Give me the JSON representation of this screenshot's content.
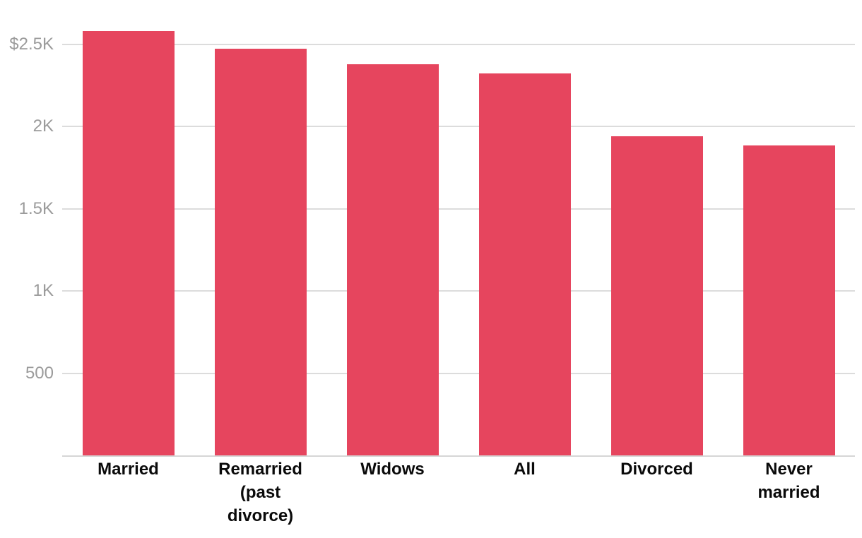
{
  "chart_data": {
    "type": "bar",
    "title": "",
    "xlabel": "",
    "ylabel": "",
    "categories": [
      "Married",
      "Remarried\n(past\ndivorce)",
      "Widows",
      "All",
      "Divorced",
      "Never\nmarried"
    ],
    "values": [
      2580,
      2475,
      2380,
      2325,
      1940,
      1885
    ],
    "ylim": [
      0,
      2770
    ],
    "yticks": [
      {
        "value": 2500,
        "label": "$2.5K"
      },
      {
        "value": 2000,
        "label": "2K"
      },
      {
        "value": 1500,
        "label": "1.5K"
      },
      {
        "value": 1000,
        "label": "1K"
      },
      {
        "value": 500,
        "label": "500"
      }
    ],
    "grid": true,
    "legend": "none",
    "colors": {
      "bar": "#e6455e",
      "gridline": "#dcdcdc",
      "axis_baseline": "#d6d6d6",
      "y_tick_label": "#9b9b9b",
      "x_category_label": "#0a0a0a",
      "background": "#ffffff"
    }
  }
}
